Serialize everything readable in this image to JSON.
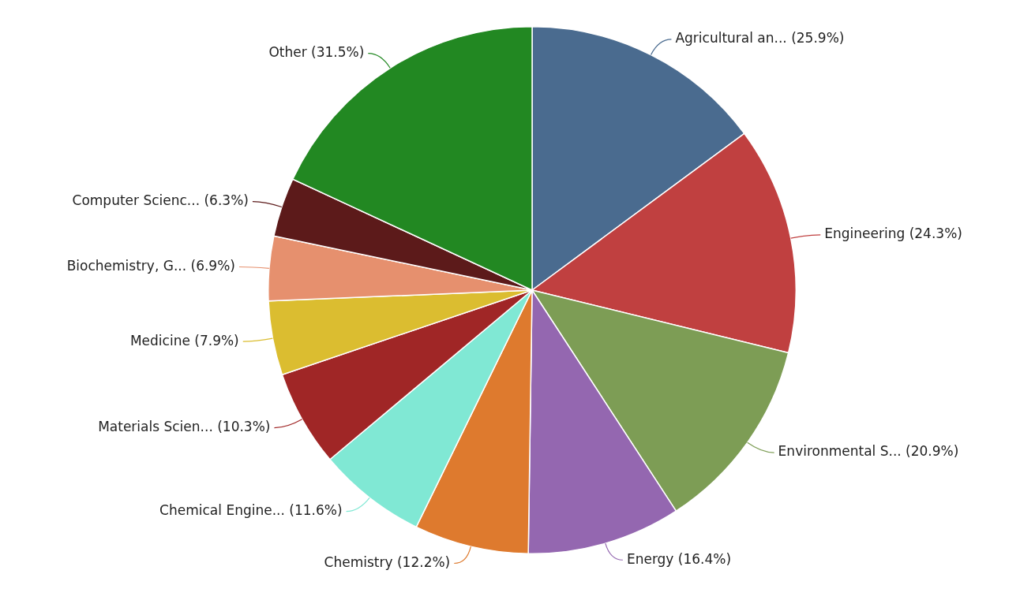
{
  "chart_data": {
    "type": "pie",
    "categories": [
      "Agricultural an...",
      "Engineering",
      "Environmental S...",
      "Energy",
      "Chemistry",
      "Chemical Engine...",
      "Materials Scien...",
      "Medicine",
      "Biochemistry, G...",
      "Computer Scienc...",
      "Other"
    ],
    "values": [
      25.9,
      24.3,
      20.9,
      16.4,
      12.2,
      11.6,
      10.3,
      7.9,
      6.9,
      6.3,
      31.5
    ],
    "value_labels": [
      "(25.9%)",
      "(24.3%)",
      "(20.9%)",
      "(16.4%)",
      "(12.2%)",
      "(11.6%)",
      "(10.3%)",
      "(7.9%)",
      "(6.9%)",
      "(6.3%)",
      "(31.5%)"
    ],
    "colors": [
      "#4a6b8f",
      "#c04040",
      "#7d9d55",
      "#9467b0",
      "#de7a2e",
      "#80e8d4",
      "#a02626",
      "#dbbd30",
      "#e6906e",
      "#5c1a1a",
      "#228822"
    ],
    "legend": false
  }
}
